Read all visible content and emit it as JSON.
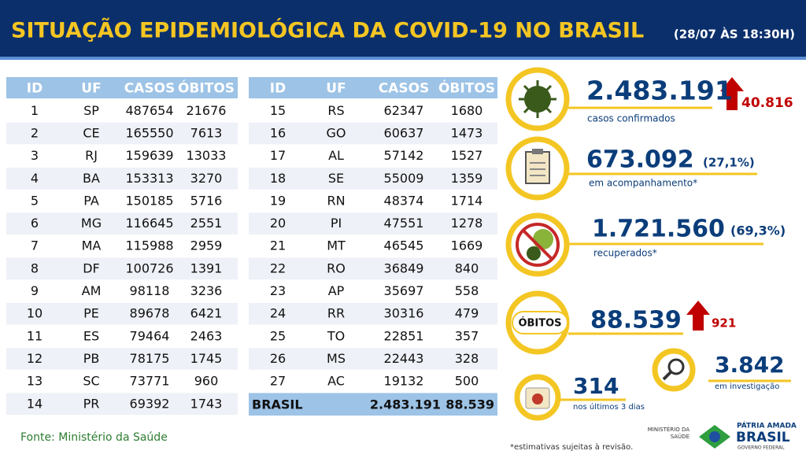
{
  "header": {
    "title": "SITUAÇÃO EPIDEMIOLÓGICA DA COVID-19 NO BRASIL",
    "subtitle": "(28/07 ÀS 18:30H)"
  },
  "tables": [
    {
      "columns": [
        "ID",
        "UF",
        "CASOS",
        "ÓBITOS"
      ],
      "rows": [
        [
          1,
          "SP",
          487654,
          21676
        ],
        [
          2,
          "CE",
          165550,
          7613
        ],
        [
          3,
          "RJ",
          159639,
          13033
        ],
        [
          4,
          "BA",
          153313,
          3270
        ],
        [
          5,
          "PA",
          150185,
          5716
        ],
        [
          6,
          "MG",
          116645,
          2551
        ],
        [
          7,
          "MA",
          115988,
          2959
        ],
        [
          8,
          "DF",
          100726,
          1391
        ],
        [
          9,
          "AM",
          98118,
          3236
        ],
        [
          10,
          "PE",
          89678,
          6421
        ],
        [
          11,
          "ES",
          79464,
          2463
        ],
        [
          12,
          "PB",
          78175,
          1745
        ],
        [
          13,
          "SC",
          73771,
          960
        ],
        [
          14,
          "PR",
          69392,
          1743
        ]
      ]
    },
    {
      "columns": [
        "ID",
        "UF",
        "CASOS",
        "ÓBITOS"
      ],
      "rows": [
        [
          15,
          "RS",
          62347,
          1680
        ],
        [
          16,
          "GO",
          60637,
          1473
        ],
        [
          17,
          "AL",
          57142,
          1527
        ],
        [
          18,
          "SE",
          55009,
          1359
        ],
        [
          19,
          "RN",
          48374,
          1714
        ],
        [
          20,
          "PI",
          47551,
          1278
        ],
        [
          21,
          "MT",
          46545,
          1669
        ],
        [
          22,
          "RO",
          36849,
          840
        ],
        [
          23,
          "AP",
          35697,
          558
        ],
        [
          24,
          "RR",
          30316,
          479
        ],
        [
          25,
          "TO",
          22851,
          357
        ],
        [
          26,
          "MS",
          22443,
          328
        ],
        [
          27,
          "AC",
          19132,
          500
        ]
      ],
      "total": [
        "BRASIL",
        "2.483.191",
        "88.539"
      ]
    }
  ],
  "stats": {
    "confirmed": {
      "value": "2.483.191",
      "increase": "40.816",
      "label": "casos confirmados"
    },
    "monitoring": {
      "value": "673.092",
      "share": "(27,1%)",
      "label": "em acompanhamento*"
    },
    "recovered": {
      "value": "1.721.560",
      "share": "(69,3%)",
      "label": "recuperados*"
    },
    "deaths": {
      "badge": "ÓBITOS",
      "value": "88.539",
      "increase": "921"
    },
    "investigation": {
      "value": "3.842",
      "label": "em investigação"
    },
    "last_days": {
      "value": "314",
      "label": "nos últimos 3 dias"
    }
  },
  "footer": {
    "source": "Fonte: Ministério da Saúde",
    "note": "*estimativas sujeitas à revisão.",
    "ministry": [
      "MINISTÉRIO DA",
      "SAÚDE"
    ],
    "brand": [
      "PÁTRIA AMADA",
      "BRASIL",
      "GOVERNO FEDERAL"
    ]
  }
}
